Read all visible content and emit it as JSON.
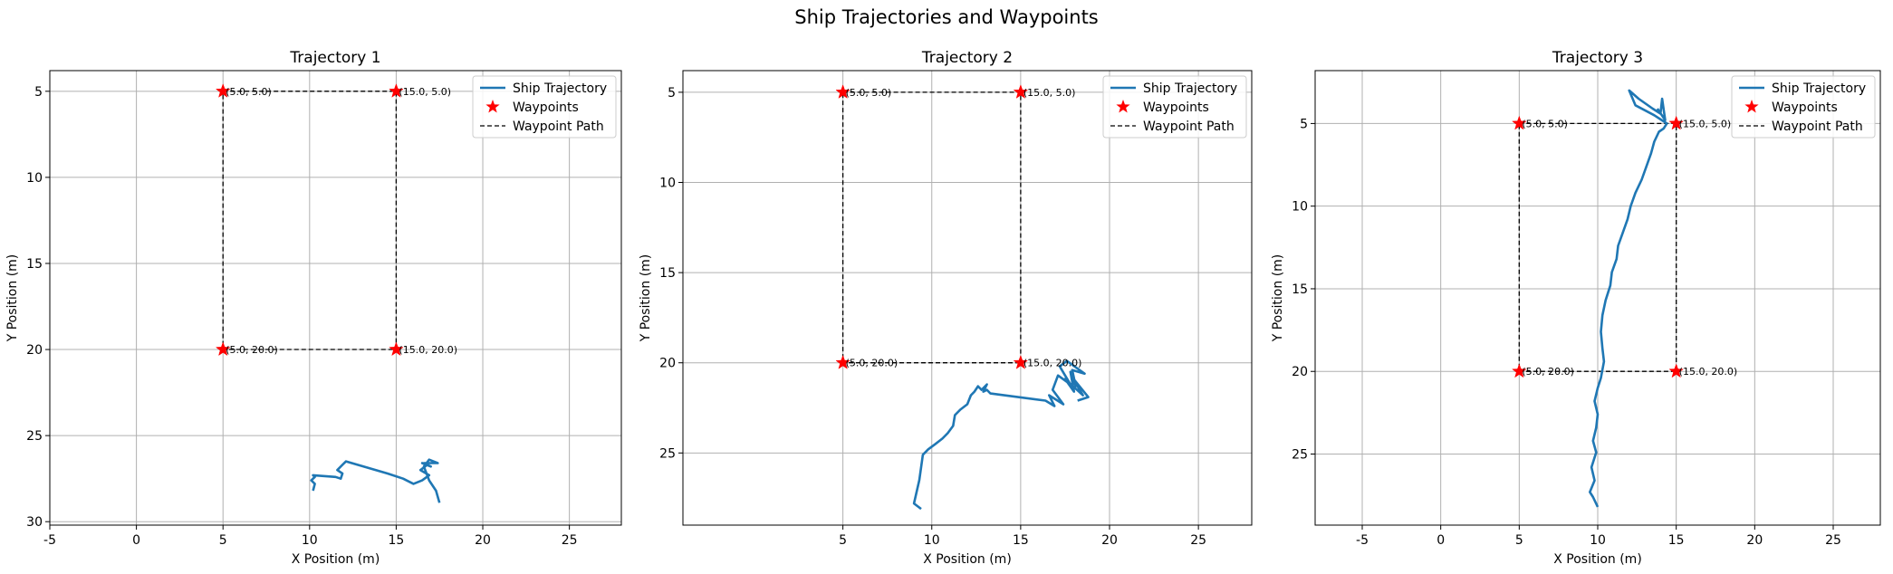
{
  "figure": {
    "title": "Ship Trajectories and Waypoints"
  },
  "colors": {
    "trajectory": "#1f77b4",
    "waypoint": "#ff0000",
    "waypoint_path": "#000000",
    "grid": "#b0b0b0"
  },
  "chart_data": [
    {
      "type": "line",
      "title": "Trajectory 1",
      "xlabel": "X Position (m)",
      "ylabel": "Y Position (m)",
      "xlim": [
        -5,
        28
      ],
      "ylim": [
        30.2,
        3.8
      ],
      "y_inverted": true,
      "xticks": [
        -5,
        0,
        5,
        10,
        15,
        20,
        25
      ],
      "yticks": [
        5,
        10,
        15,
        20,
        25,
        30
      ],
      "grid": true,
      "legend": "top-right",
      "legend_entries": [
        "Ship Trajectory",
        "Waypoints",
        "Waypoint Path"
      ],
      "waypoints": [
        {
          "x": 5,
          "y": 5,
          "label": "(5.0, 5.0)"
        },
        {
          "x": 15,
          "y": 5,
          "label": "(15.0, 5.0)"
        },
        {
          "x": 5,
          "y": 20,
          "label": "(5.0, 20.0)"
        },
        {
          "x": 15,
          "y": 20,
          "label": "(15.0, 20.0)"
        }
      ],
      "waypoint_path": {
        "x": [
          5,
          15,
          15,
          5,
          5
        ],
        "y": [
          5,
          5,
          20,
          20,
          5
        ]
      },
      "trajectory": {
        "x": [
          10.2,
          10.3,
          10.1,
          10.3,
          10.2,
          11.5,
          11.8,
          11.9,
          11.6,
          11.9,
          12.1,
          14.5,
          15.4,
          16.0,
          16.5,
          16.9,
          16.4,
          16.8,
          16.5,
          17.0,
          16.6,
          17.4,
          16.9,
          16.6,
          16.9,
          17.3,
          17.5
        ],
        "y": [
          28.2,
          27.8,
          27.6,
          27.4,
          27.3,
          27.4,
          27.5,
          27.2,
          27.0,
          26.7,
          26.5,
          27.2,
          27.5,
          27.8,
          27.6,
          27.3,
          27.0,
          26.7,
          26.6,
          26.8,
          26.6,
          26.6,
          26.4,
          26.8,
          27.6,
          28.2,
          28.9
        ]
      }
    },
    {
      "type": "line",
      "title": "Trajectory 2",
      "xlabel": "X Position (m)",
      "ylabel": "Y Position (m)",
      "xlim": [
        -4,
        28
      ],
      "ylim": [
        29.0,
        3.8
      ],
      "y_inverted": true,
      "xticks": [
        5,
        10,
        15,
        20,
        25
      ],
      "yticks": [
        5,
        10,
        15,
        20,
        25
      ],
      "grid": true,
      "legend": "top-right",
      "legend_entries": [
        "Ship Trajectory",
        "Waypoints",
        "Waypoint Path"
      ],
      "waypoints": [
        {
          "x": 5,
          "y": 5,
          "label": "(5.0, 5.0)"
        },
        {
          "x": 15,
          "y": 5,
          "label": "(15.0, 5.0)"
        },
        {
          "x": 5,
          "y": 20,
          "label": "(5.0, 20.0)"
        },
        {
          "x": 15,
          "y": 20,
          "label": "(15.0, 20.0)"
        }
      ],
      "waypoint_path": {
        "x": [
          5,
          15,
          15,
          5,
          5
        ],
        "y": [
          5,
          5,
          20,
          20,
          5
        ]
      },
      "trajectory": {
        "x": [
          9.4,
          9.0,
          9.3,
          9.5,
          9.8,
          10.2,
          10.6,
          10.9,
          11.2,
          11.3,
          11.6,
          12.0,
          12.2,
          12.4,
          12.6,
          12.8,
          13.1,
          12.9,
          13.1,
          13.3,
          16.4,
          16.9,
          16.6,
          17.4,
          16.8,
          17.1,
          17.8,
          17.2,
          17.6,
          18.6,
          17.9,
          18.1,
          17.8,
          18.0,
          17.5,
          18.5,
          17.9,
          18.8,
          18.2
        ],
        "y": [
          28.1,
          27.8,
          26.5,
          25.1,
          24.8,
          24.5,
          24.2,
          23.9,
          23.5,
          22.9,
          22.6,
          22.3,
          21.8,
          21.6,
          21.3,
          21.5,
          21.2,
          21.6,
          21.5,
          21.7,
          22.1,
          22.4,
          21.8,
          22.3,
          21.5,
          20.7,
          21.2,
          20.2,
          19.9,
          20.6,
          20.4,
          21.3,
          20.5,
          21.6,
          20.9,
          21.8,
          20.8,
          21.9,
          22.1
        ]
      }
    },
    {
      "type": "line",
      "title": "Trajectory 3",
      "xlabel": "X Position (m)",
      "ylabel": "Y Position (m)",
      "xlim": [
        -8,
        28
      ],
      "ylim": [
        29.3,
        1.8
      ],
      "y_inverted": true,
      "xticks": [
        -5,
        0,
        5,
        10,
        15,
        20,
        25
      ],
      "yticks": [
        5,
        10,
        15,
        20,
        25
      ],
      "grid": true,
      "legend": "top-right",
      "legend_entries": [
        "Ship Trajectory",
        "Waypoints",
        "Waypoint Path"
      ],
      "waypoints": [
        {
          "x": 5,
          "y": 5,
          "label": "(5.0, 5.0)"
        },
        {
          "x": 15,
          "y": 5,
          "label": "(15.0, 5.0)"
        },
        {
          "x": 5,
          "y": 20,
          "label": "(5.0, 20.0)"
        },
        {
          "x": 15,
          "y": 20,
          "label": "(15.0, 20.0)"
        }
      ],
      "waypoint_path": {
        "x": [
          5,
          15,
          15,
          5,
          5
        ],
        "y": [
          5,
          5,
          20,
          20,
          5
        ]
      },
      "trajectory": {
        "x": [
          10.0,
          9.7,
          9.5,
          9.8,
          9.6,
          9.9,
          9.7,
          9.9,
          10.0,
          9.8,
          10.0,
          10.2,
          10.4,
          10.3,
          10.2,
          10.3,
          10.5,
          10.8,
          10.9,
          11.2,
          11.3,
          11.6,
          11.9,
          12.1,
          12.4,
          12.8,
          13.1,
          13.4,
          13.6,
          13.9,
          14.2,
          14.4,
          13.6,
          12.4,
          12.0,
          12.6,
          13.5,
          14.0,
          14.1,
          14.3,
          13.8
        ],
        "y": [
          28.2,
          27.6,
          27.3,
          26.6,
          25.8,
          24.9,
          24.2,
          23.4,
          22.6,
          21.8,
          21.0,
          20.4,
          19.4,
          18.6,
          17.6,
          16.6,
          15.7,
          14.8,
          14.0,
          13.2,
          12.4,
          11.6,
          10.8,
          10.0,
          9.2,
          8.4,
          7.6,
          6.8,
          6.1,
          5.5,
          5.3,
          5.0,
          4.5,
          3.9,
          3.0,
          3.5,
          4.1,
          4.4,
          3.5,
          4.8,
          4.1
        ]
      }
    }
  ]
}
